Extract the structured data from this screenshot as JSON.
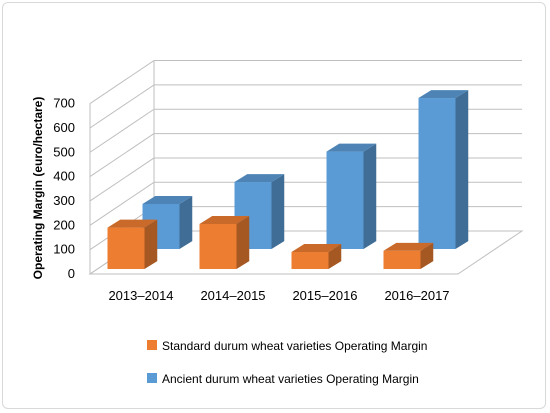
{
  "chart_data": {
    "type": "bar",
    "title": "",
    "xlabel": "",
    "ylabel": "Operating Margin (euro/hectare)",
    "ylim": [
      0,
      700
    ],
    "yticks": [
      0,
      100,
      200,
      300,
      400,
      500,
      600,
      700
    ],
    "categories": [
      "2013–2014",
      "2014–2015",
      "2015–2016",
      "2016–2017"
    ],
    "series": [
      {
        "name": "Standard durum wheat varieties Operating Margin",
        "color": "#ED7D31",
        "values": [
          170,
          185,
          70,
          75
        ]
      },
      {
        "name": "Ancient durum wheat varieties Operating Margin",
        "color": "#5B9BD5",
        "values": [
          185,
          275,
          400,
          620
        ]
      }
    ],
    "legend_position": "bottom",
    "grid": true,
    "style": "3d-column"
  }
}
